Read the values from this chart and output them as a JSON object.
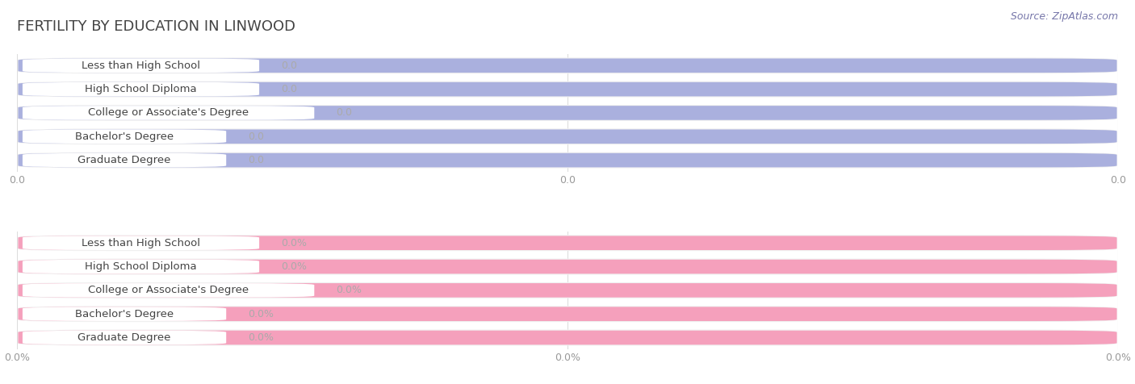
{
  "title": "FERTILITY BY EDUCATION IN LINWOOD",
  "source": "Source: ZipAtlas.com",
  "categories": [
    "Less than High School",
    "High School Diploma",
    "College or Associate's Degree",
    "Bachelor's Degree",
    "Graduate Degree"
  ],
  "top_values": [
    0.0,
    0.0,
    0.0,
    0.0,
    0.0
  ],
  "bottom_values": [
    0.0,
    0.0,
    0.0,
    0.0,
    0.0
  ],
  "top_bar_color": "#aab0de",
  "top_bar_bg": "#f0f0f0",
  "bottom_bar_color": "#f5a0bc",
  "bottom_bar_bg": "#f0f0f0",
  "label_bg_color": "#ffffff",
  "top_value_format": "0.0",
  "bottom_value_format": "0.0%",
  "top_xtick_labels": [
    "0.0",
    "0.0",
    "0.0"
  ],
  "bottom_xtick_labels": [
    "0.0%",
    "0.0%",
    "0.0%"
  ],
  "bar_height": 0.68,
  "title_fontsize": 13,
  "label_fontsize": 9.5,
  "tick_fontsize": 9,
  "source_fontsize": 9,
  "title_color": "#444444",
  "label_text_color": "#444444",
  "tick_color": "#999999",
  "source_color": "#7777aa",
  "value_text_color": "#aaaaaa",
  "bg_color": "#ffffff",
  "grid_color": "#dddddd",
  "separator_color": "#dddddd"
}
